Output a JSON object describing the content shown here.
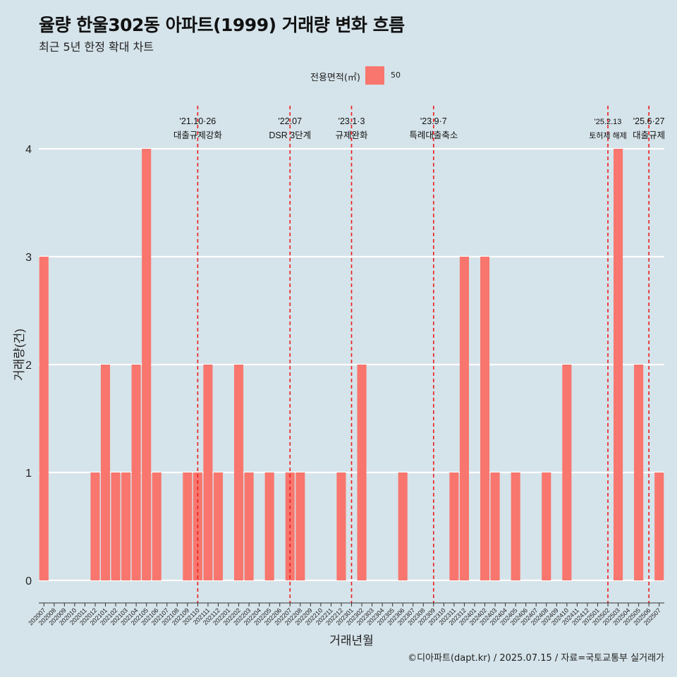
{
  "title": "율량 한울302동 아파트(1999) 거래량 변화 흐름",
  "subtitle": "최근 5년 한정 확대 차트",
  "legend": {
    "title": "전용면적(㎡)",
    "label": "50",
    "color": "#f8766d"
  },
  "caption": "©디아파트(dapt.kr) / 2025.07.15 / 자료=국토교통부 실거래가",
  "chart_data": {
    "type": "bar",
    "xlabel": "거래년월",
    "ylabel": "거래량(건)",
    "ylim": [
      0,
      4
    ],
    "yticks": [
      0,
      1,
      2,
      3,
      4
    ],
    "grid": true,
    "legend_position": "top",
    "bar_color": "#f8766d",
    "categories": [
      "202007",
      "202008",
      "202009",
      "202010",
      "202011",
      "202012",
      "202101",
      "202102",
      "202103",
      "202104",
      "202105",
      "202106",
      "202107",
      "202108",
      "202109",
      "202110",
      "202111",
      "202112",
      "202201",
      "202202",
      "202203",
      "202204",
      "202205",
      "202206",
      "202207",
      "202208",
      "202209",
      "202210",
      "202211",
      "202212",
      "202301",
      "202302",
      "202303",
      "202304",
      "202305",
      "202306",
      "202307",
      "202308",
      "202309",
      "202310",
      "202311",
      "202312",
      "202401",
      "202402",
      "202403",
      "202404",
      "202405",
      "202406",
      "202407",
      "202408",
      "202409",
      "202410",
      "202411",
      "202412",
      "202501",
      "202502",
      "202503",
      "202504",
      "202505",
      "202506",
      "202507"
    ],
    "series": [
      {
        "values": [
          3,
          0,
          0,
          0,
          0,
          1,
          2,
          1,
          1,
          2,
          4,
          1,
          0,
          0,
          1,
          1,
          2,
          1,
          0,
          2,
          1,
          0,
          1,
          0,
          1,
          1,
          0,
          0,
          0,
          1,
          0,
          2,
          0,
          0,
          0,
          1,
          0,
          0,
          0,
          0,
          1,
          3,
          0,
          3,
          1,
          0,
          1,
          0,
          0,
          1,
          0,
          2,
          0,
          0,
          0,
          0,
          4,
          0,
          2,
          0,
          1
        ]
      }
    ],
    "annotations": [
      {
        "x": "202110",
        "date": "'21.10·26",
        "text": "대출규제강화",
        "dashed_line": true
      },
      {
        "x": "202207",
        "date": "'22.07",
        "text": "DSR 3단계",
        "dashed_line": true
      },
      {
        "x": "202301",
        "date": "'23.1·3",
        "text": "규제완화",
        "dashed_line": true
      },
      {
        "x": "202309",
        "date": "'23.9·7",
        "text": "특례대출축소",
        "dashed_line": true
      },
      {
        "x": "202502",
        "date": "'25.2.13",
        "text": "토허제 해제",
        "dashed_line": true
      },
      {
        "x": "202506",
        "date": "'25.6·27",
        "text": "대출규제",
        "dashed_line": true
      }
    ]
  }
}
